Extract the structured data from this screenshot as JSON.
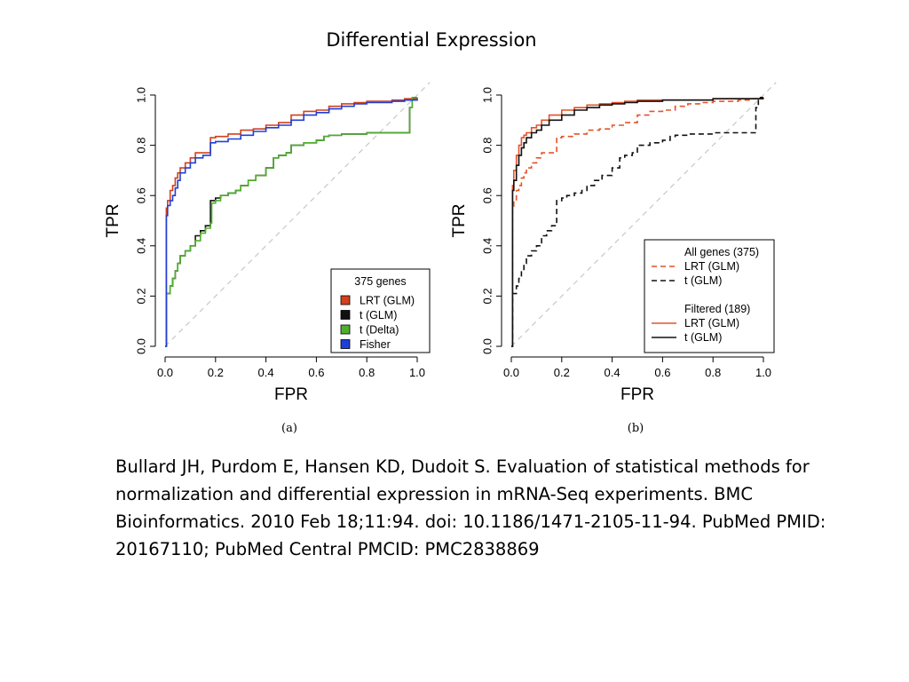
{
  "slide": {
    "title": "Differential Expression",
    "citation": "Bullard JH, Purdom E, Hansen KD, Dudoit S. Evaluation of statistical methods for normalization and differential expression in mRNA-Seq experiments. BMC Bioinformatics. 2010 Feb 18;11:94. doi: 10.1186/1471-2105-11-94. PubMed PMID: 20167110; PubMed Central PMCID: PMC2838869"
  },
  "chart_data": [
    {
      "type": "line",
      "panel_label": "(a)",
      "xlabel": "FPR",
      "ylabel": "TPR",
      "xlim": [
        0,
        1
      ],
      "ylim": [
        0,
        1
      ],
      "xticks": [
        "0.0",
        "0.2",
        "0.4",
        "0.6",
        "0.8",
        "1.0"
      ],
      "yticks": [
        "0.0",
        "0.2",
        "0.4",
        "0.6",
        "0.8",
        "1.0"
      ],
      "reference_line": {
        "color": "#c8c8c8",
        "dash": true
      },
      "legend": {
        "title": "375 genes",
        "position": "bottom-right"
      },
      "series": [
        {
          "name": "LRT (GLM)",
          "color": "#d2401c",
          "style": "solid",
          "x": [
            0,
            0.005,
            0.005,
            0.01,
            0.01,
            0.02,
            0.02,
            0.03,
            0.04,
            0.05,
            0.06,
            0.08,
            0.1,
            0.12,
            0.15,
            0.18,
            0.18,
            0.2,
            0.25,
            0.3,
            0.35,
            0.4,
            0.45,
            0.5,
            0.55,
            0.6,
            0.65,
            0.7,
            0.75,
            0.8,
            0.9,
            0.95,
            1.0
          ],
          "y": [
            0,
            0.02,
            0.55,
            0.56,
            0.58,
            0.6,
            0.62,
            0.64,
            0.67,
            0.69,
            0.71,
            0.73,
            0.75,
            0.77,
            0.77,
            0.78,
            0.83,
            0.835,
            0.845,
            0.86,
            0.865,
            0.88,
            0.89,
            0.92,
            0.935,
            0.94,
            0.955,
            0.965,
            0.97,
            0.975,
            0.98,
            0.985,
            0.99
          ]
        },
        {
          "name": "t (GLM)",
          "color": "#111111",
          "style": "solid",
          "x": [
            0,
            0.005,
            0.005,
            0.02,
            0.03,
            0.04,
            0.05,
            0.06,
            0.08,
            0.1,
            0.12,
            0.14,
            0.16,
            0.18,
            0.18,
            0.2,
            0.22,
            0.25,
            0.28,
            0.3,
            0.33,
            0.36,
            0.4,
            0.43,
            0.45,
            0.48,
            0.5,
            0.55,
            0.6,
            0.63,
            0.65,
            0.7,
            0.75,
            0.8,
            0.85,
            0.9,
            0.92,
            0.97,
            0.97,
            0.98,
            0.98,
            1.0
          ],
          "y": [
            0,
            0.02,
            0.21,
            0.24,
            0.27,
            0.3,
            0.33,
            0.36,
            0.38,
            0.4,
            0.44,
            0.46,
            0.48,
            0.5,
            0.58,
            0.59,
            0.6,
            0.61,
            0.62,
            0.64,
            0.66,
            0.68,
            0.71,
            0.75,
            0.76,
            0.77,
            0.8,
            0.81,
            0.82,
            0.835,
            0.84,
            0.845,
            0.845,
            0.85,
            0.85,
            0.85,
            0.85,
            0.85,
            0.95,
            0.96,
            0.99,
            0.99
          ]
        },
        {
          "name": "t (Delta)",
          "color": "#4fae2e",
          "style": "solid",
          "x": [
            0,
            0.005,
            0.005,
            0.02,
            0.03,
            0.04,
            0.05,
            0.06,
            0.08,
            0.1,
            0.12,
            0.14,
            0.16,
            0.18,
            0.185,
            0.2,
            0.22,
            0.25,
            0.28,
            0.3,
            0.33,
            0.36,
            0.4,
            0.43,
            0.45,
            0.48,
            0.5,
            0.55,
            0.6,
            0.63,
            0.65,
            0.7,
            0.75,
            0.8,
            0.85,
            0.9,
            0.92,
            0.97,
            0.97,
            0.98,
            0.98,
            1.0
          ],
          "y": [
            0,
            0.02,
            0.21,
            0.24,
            0.27,
            0.3,
            0.33,
            0.36,
            0.38,
            0.4,
            0.42,
            0.45,
            0.47,
            0.49,
            0.57,
            0.58,
            0.6,
            0.61,
            0.62,
            0.64,
            0.66,
            0.68,
            0.71,
            0.75,
            0.76,
            0.77,
            0.8,
            0.81,
            0.82,
            0.835,
            0.84,
            0.845,
            0.845,
            0.85,
            0.85,
            0.85,
            0.85,
            0.85,
            0.95,
            0.96,
            0.99,
            0.99
          ]
        },
        {
          "name": "Fisher",
          "color": "#1f3fd8",
          "style": "solid",
          "x": [
            0,
            0.005,
            0.005,
            0.01,
            0.01,
            0.02,
            0.03,
            0.04,
            0.05,
            0.06,
            0.08,
            0.1,
            0.12,
            0.15,
            0.18,
            0.18,
            0.2,
            0.25,
            0.3,
            0.35,
            0.4,
            0.45,
            0.5,
            0.55,
            0.6,
            0.65,
            0.7,
            0.75,
            0.8,
            0.9,
            0.95,
            1.0
          ],
          "y": [
            0,
            0.02,
            0.52,
            0.53,
            0.56,
            0.58,
            0.6,
            0.63,
            0.66,
            0.69,
            0.71,
            0.73,
            0.75,
            0.76,
            0.77,
            0.81,
            0.815,
            0.825,
            0.84,
            0.855,
            0.87,
            0.88,
            0.9,
            0.92,
            0.93,
            0.945,
            0.955,
            0.965,
            0.97,
            0.975,
            0.98,
            0.985
          ]
        }
      ]
    },
    {
      "type": "line",
      "panel_label": "(b)",
      "xlabel": "FPR",
      "ylabel": "TPR",
      "xlim": [
        0,
        1
      ],
      "ylim": [
        0,
        1
      ],
      "xticks": [
        "0.0",
        "0.2",
        "0.4",
        "0.6",
        "0.8",
        "1.0"
      ],
      "yticks": [
        "0.0",
        "0.2",
        "0.4",
        "0.6",
        "0.8",
        "1.0"
      ],
      "reference_line": {
        "color": "#c8c8c8",
        "dash": true
      },
      "legend": {
        "position": "bottom-right",
        "groups": [
          {
            "title": "All genes (375)",
            "entries": [
              "LRT (GLM)",
              "t (GLM)"
            ]
          },
          {
            "title": "Filtered (189)",
            "entries": [
              "LRT (GLM)",
              "t (GLM)"
            ]
          }
        ]
      },
      "series": [
        {
          "name": "LRT (GLM)",
          "group": "All genes (375)",
          "color": "#e4532a",
          "style": "dashed",
          "x": [
            0,
            0.005,
            0.005,
            0.01,
            0.01,
            0.02,
            0.02,
            0.03,
            0.04,
            0.05,
            0.06,
            0.08,
            0.1,
            0.12,
            0.15,
            0.18,
            0.18,
            0.2,
            0.25,
            0.3,
            0.35,
            0.4,
            0.45,
            0.5,
            0.55,
            0.6,
            0.65,
            0.7,
            0.75,
            0.8,
            0.9,
            0.95,
            1.0
          ],
          "y": [
            0,
            0.02,
            0.55,
            0.56,
            0.58,
            0.6,
            0.62,
            0.64,
            0.67,
            0.69,
            0.71,
            0.73,
            0.75,
            0.77,
            0.77,
            0.78,
            0.83,
            0.835,
            0.845,
            0.86,
            0.865,
            0.88,
            0.89,
            0.92,
            0.935,
            0.94,
            0.955,
            0.965,
            0.97,
            0.975,
            0.98,
            0.985,
            0.99
          ]
        },
        {
          "name": "t (GLM)",
          "group": "All genes (375)",
          "color": "#111111",
          "style": "dashed",
          "x": [
            0,
            0.005,
            0.005,
            0.02,
            0.03,
            0.04,
            0.05,
            0.06,
            0.08,
            0.1,
            0.12,
            0.14,
            0.16,
            0.18,
            0.18,
            0.2,
            0.22,
            0.25,
            0.28,
            0.3,
            0.33,
            0.36,
            0.4,
            0.43,
            0.45,
            0.48,
            0.5,
            0.55,
            0.6,
            0.63,
            0.65,
            0.7,
            0.75,
            0.8,
            0.85,
            0.9,
            0.92,
            0.97,
            0.97,
            0.98,
            0.98,
            1.0
          ],
          "y": [
            0,
            0.02,
            0.21,
            0.24,
            0.27,
            0.3,
            0.33,
            0.36,
            0.38,
            0.4,
            0.44,
            0.46,
            0.48,
            0.5,
            0.58,
            0.59,
            0.6,
            0.61,
            0.62,
            0.64,
            0.66,
            0.68,
            0.71,
            0.75,
            0.76,
            0.77,
            0.8,
            0.81,
            0.82,
            0.835,
            0.84,
            0.845,
            0.845,
            0.85,
            0.85,
            0.85,
            0.85,
            0.85,
            0.95,
            0.96,
            0.99,
            0.99
          ]
        },
        {
          "name": "LRT (GLM)",
          "group": "Filtered (189)",
          "color": "#e4532a",
          "style": "solid",
          "x": [
            0,
            0.005,
            0.005,
            0.01,
            0.02,
            0.03,
            0.04,
            0.05,
            0.06,
            0.08,
            0.1,
            0.12,
            0.15,
            0.2,
            0.25,
            0.3,
            0.35,
            0.4,
            0.45,
            0.5,
            0.6,
            0.8,
            1.0
          ],
          "y": [
            0,
            0.02,
            0.64,
            0.7,
            0.76,
            0.8,
            0.83,
            0.84,
            0.85,
            0.87,
            0.88,
            0.9,
            0.92,
            0.94,
            0.95,
            0.96,
            0.965,
            0.97,
            0.975,
            0.98,
            0.98,
            0.985,
            0.985
          ]
        },
        {
          "name": "t (GLM)",
          "group": "Filtered (189)",
          "color": "#111111",
          "style": "solid",
          "x": [
            0,
            0.005,
            0.005,
            0.01,
            0.02,
            0.03,
            0.04,
            0.05,
            0.06,
            0.08,
            0.1,
            0.12,
            0.15,
            0.2,
            0.25,
            0.3,
            0.35,
            0.4,
            0.45,
            0.5,
            0.6,
            0.8,
            1.0
          ],
          "y": [
            0,
            0.02,
            0.62,
            0.66,
            0.72,
            0.76,
            0.79,
            0.81,
            0.83,
            0.85,
            0.86,
            0.88,
            0.9,
            0.92,
            0.94,
            0.95,
            0.96,
            0.965,
            0.97,
            0.975,
            0.98,
            0.985,
            0.985
          ]
        }
      ]
    }
  ]
}
